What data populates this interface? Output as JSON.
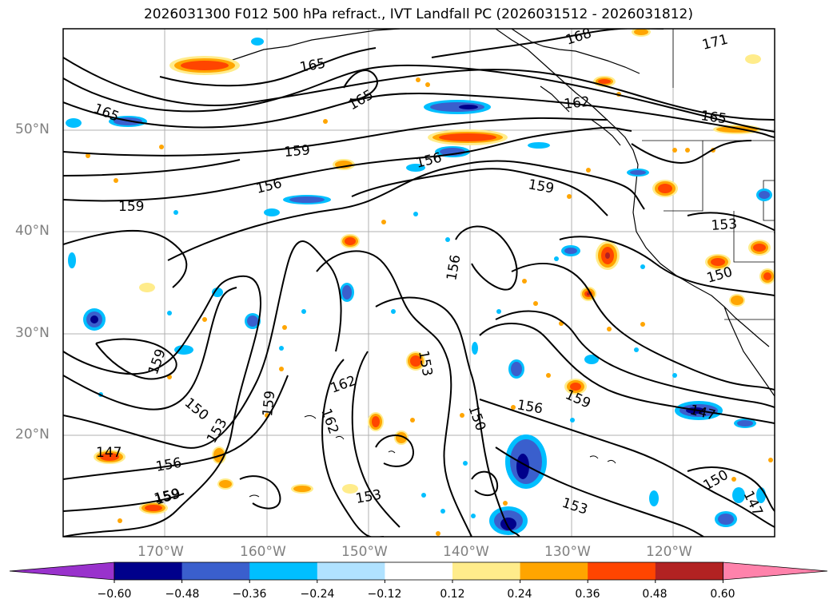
{
  "title": "2026031300 F012 500 hPa refract., IVT Landfall PC (2026031512 - 2026031812)",
  "map": {
    "lon_range": [
      -180,
      -110
    ],
    "lat_range": [
      10,
      60
    ],
    "gridlines": true,
    "lat_labels": [
      "50°N",
      "40°N",
      "30°N",
      "20°N"
    ],
    "lon_labels": [
      "170°W",
      "160°W",
      "150°W",
      "140°W",
      "130°W",
      "120°W"
    ],
    "contour_labels": [
      "168",
      "171",
      "165",
      "165",
      "165",
      "162",
      "165",
      "159",
      "159",
      "156",
      "156",
      "159",
      "159",
      "153",
      "156",
      "150",
      "159",
      "153",
      "162",
      "159",
      "150",
      "162",
      "153",
      "150",
      "156",
      "159",
      "147",
      "147",
      "156",
      "159",
      "153",
      "153",
      "150",
      "147"
    ]
  },
  "colorbar": {
    "ticks": [
      "−0.60",
      "−0.48",
      "−0.36",
      "−0.24",
      "−0.12",
      "0.12",
      "0.24",
      "0.36",
      "0.48",
      "0.60"
    ],
    "colors": [
      "#9932CC",
      "#00008B",
      "#3A5FCD",
      "#00BFFF",
      "#B0E2FF",
      "#FFFFFF",
      "#FFEC8B",
      "#FFA500",
      "#FF4500",
      "#B22222",
      "#FF82AB"
    ],
    "extend": "both"
  },
  "colors": {
    "pos_core": "#FF4500",
    "pos_edge": "#FFA500",
    "pos_rim": "#FFEC8B",
    "neg_core": "#3A5FCD",
    "neg_edge": "#00BFFF",
    "neg_deep": "#00008B",
    "grid": "#b0b0b0",
    "label": "#808080"
  }
}
